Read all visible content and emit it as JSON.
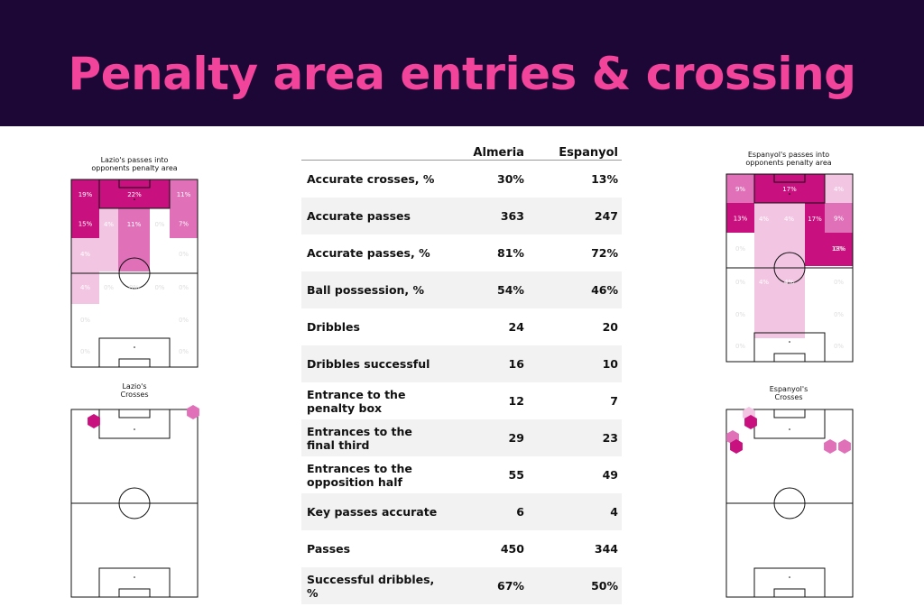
{
  "header": {
    "title": "Penalty area entries & crossing"
  },
  "chart_data": [
    {
      "type": "table",
      "columns": [
        "",
        "Almeria",
        "Espanyol"
      ],
      "rows": [
        {
          "label": "Accurate crosses, %",
          "almeria": "30%",
          "espanyol": "13%"
        },
        {
          "label": "Accurate passes",
          "almeria": "363",
          "espanyol": "247"
        },
        {
          "label": "Accurate passes, %",
          "almeria": "81%",
          "espanyol": "72%"
        },
        {
          "label": "Ball possession, %",
          "almeria": "54%",
          "espanyol": "46%"
        },
        {
          "label": "Dribbles",
          "almeria": "24",
          "espanyol": "20"
        },
        {
          "label": "Dribbles successful",
          "almeria": "16",
          "espanyol": "10"
        },
        {
          "label": "Entrance to the penalty box",
          "almeria": "12",
          "espanyol": "7"
        },
        {
          "label": "Entrances to the final third",
          "almeria": "29",
          "espanyol": "23"
        },
        {
          "label": "Entrances to the opposition half",
          "almeria": "55",
          "espanyol": "49"
        },
        {
          "label": "Key passes accurate",
          "almeria": "6",
          "espanyol": "4"
        },
        {
          "label": "Passes",
          "almeria": "450",
          "espanyol": "344"
        },
        {
          "label": "Successful dribbles, %",
          "almeria": "67%",
          "espanyol": "50%"
        }
      ]
    },
    {
      "type": "heatmap",
      "title": "Lazio's passes into\nopponents penalty area",
      "colors": [
        "#c8107e",
        "#e070b8",
        "#f2c6e2"
      ],
      "cells": [
        {
          "zone": "box-left",
          "label": "19%",
          "value": 19
        },
        {
          "zone": "box-centre",
          "label": "22%",
          "value": 22
        },
        {
          "zone": "box-right",
          "label": "11%",
          "value": 11
        },
        {
          "zone": "wide-left-2",
          "label": "15%",
          "value": 15
        },
        {
          "zone": "halfspace-left-2",
          "label": "4%",
          "value": 4
        },
        {
          "zone": "centre-2",
          "label": "11%",
          "value": 11
        },
        {
          "zone": "halfspace-right-2",
          "label": "0%",
          "value": 0
        },
        {
          "zone": "wide-right-2",
          "label": "7%",
          "value": 7
        },
        {
          "zone": "wide-left-3",
          "label": "4%",
          "value": 4
        },
        {
          "zone": "wide-right-3",
          "label": "0%",
          "value": 0
        },
        {
          "zone": "wide-left-4",
          "label": "4%",
          "value": 4
        },
        {
          "zone": "halfspace-left-4",
          "label": "0%",
          "value": 0
        },
        {
          "zone": "centre-4",
          "label": "0%",
          "value": 0
        },
        {
          "zone": "halfspace-right-4",
          "label": "0%",
          "value": 0
        },
        {
          "zone": "wide-right-4",
          "label": "0%",
          "value": 0
        },
        {
          "zone": "wide-left-5",
          "label": "0%",
          "value": 0
        },
        {
          "zone": "wide-right-5",
          "label": "0%",
          "value": 0
        },
        {
          "zone": "wide-left-6",
          "label": "0%",
          "value": 0
        },
        {
          "zone": "wide-right-6",
          "label": "0%",
          "value": 0
        }
      ]
    },
    {
      "type": "heatmap",
      "title": "Espanyol's passes into\nopponents penalty area",
      "colors": [
        "#c8107e",
        "#e070b8",
        "#f2c6e2"
      ],
      "cells": [
        {
          "zone": "box-left",
          "label": "9%",
          "value": 9
        },
        {
          "zone": "box-centre",
          "label": "17%",
          "value": 17
        },
        {
          "zone": "box-right",
          "label": "4%",
          "value": 4
        },
        {
          "zone": "wide-left-2",
          "label": "13%",
          "value": 13
        },
        {
          "zone": "halfspace-left-2",
          "label": "4%",
          "value": 4
        },
        {
          "zone": "centre-2",
          "label": "4%",
          "value": 4
        },
        {
          "zone": "halfspace-right-2",
          "label": "17%",
          "value": 17
        },
        {
          "zone": "wide-right-2",
          "label": "9%",
          "value": 9
        },
        {
          "zone": "wide-right-2b",
          "label": "13%",
          "value": 13
        },
        {
          "zone": "wide-left-3",
          "label": "0%",
          "value": 0
        },
        {
          "zone": "wide-right-3",
          "label": "0%",
          "value": 0
        },
        {
          "zone": "wide-left-4",
          "label": "0%",
          "value": 0
        },
        {
          "zone": "halfspace-left-4",
          "label": "4%",
          "value": 4
        },
        {
          "zone": "centre-4",
          "label": "4%",
          "value": 4
        },
        {
          "zone": "wide-right-4",
          "label": "0%",
          "value": 0
        },
        {
          "zone": "wide-left-5",
          "label": "0%",
          "value": 0
        },
        {
          "zone": "wide-right-5",
          "label": "0%",
          "value": 0
        },
        {
          "zone": "wide-left-6",
          "label": "0%",
          "value": 0
        },
        {
          "zone": "wide-right-6",
          "label": "0%",
          "value": 0
        }
      ]
    },
    {
      "type": "scatter",
      "title": "Lazio's\nCrosses",
      "colors": [
        "#c8107e",
        "#e070b8"
      ],
      "points": [
        {
          "zone": "top-left",
          "intensity": "high"
        },
        {
          "zone": "top-right-corner",
          "intensity": "medium"
        }
      ]
    },
    {
      "type": "scatter",
      "title": "Espanyol's\nCrosses",
      "colors": [
        "#c8107e",
        "#e070b8",
        "#f2c6e2"
      ],
      "points": [
        {
          "zone": "top-left-1",
          "intensity": "low"
        },
        {
          "zone": "top-left-2",
          "intensity": "high"
        },
        {
          "zone": "left-wing-1",
          "intensity": "medium"
        },
        {
          "zone": "left-wing-2",
          "intensity": "high"
        },
        {
          "zone": "right-wing-1",
          "intensity": "medium"
        },
        {
          "zone": "right-wing-2",
          "intensity": "medium"
        }
      ]
    }
  ]
}
